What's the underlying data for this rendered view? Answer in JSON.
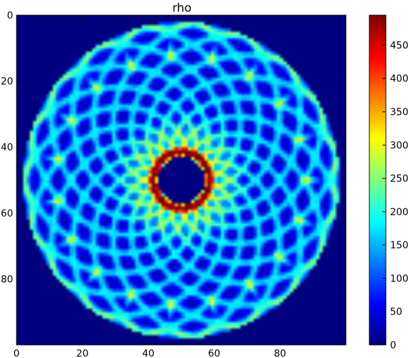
{
  "chart_data": {
    "type": "heatmap",
    "title": "rho",
    "xlabel": "",
    "ylabel": "",
    "grid_size": [
      100,
      100
    ],
    "xlim": [
      0,
      100
    ],
    "ylim": [
      100,
      0
    ],
    "x_ticks": [
      0,
      20,
      40,
      60,
      80
    ],
    "y_ticks": [
      0,
      20,
      40,
      60,
      80
    ],
    "colormap": "jet",
    "colorbar": {
      "min": 0,
      "max": 495,
      "ticks": [
        0,
        50,
        100,
        150,
        200,
        250,
        300,
        350,
        400,
        450
      ]
    },
    "pattern": {
      "description_values": {
        "background_value": 0,
        "disk_center": [
          50,
          50
        ],
        "disk_radius": 48,
        "inner_hole_radius": 7,
        "ring_peak_radius": 8.5,
        "ring_peak_value": 480,
        "band_value_typical": 150,
        "gap_value_typical": 35,
        "rosette_loop_count": 19,
        "hot_spot_value": 300
      }
    }
  }
}
